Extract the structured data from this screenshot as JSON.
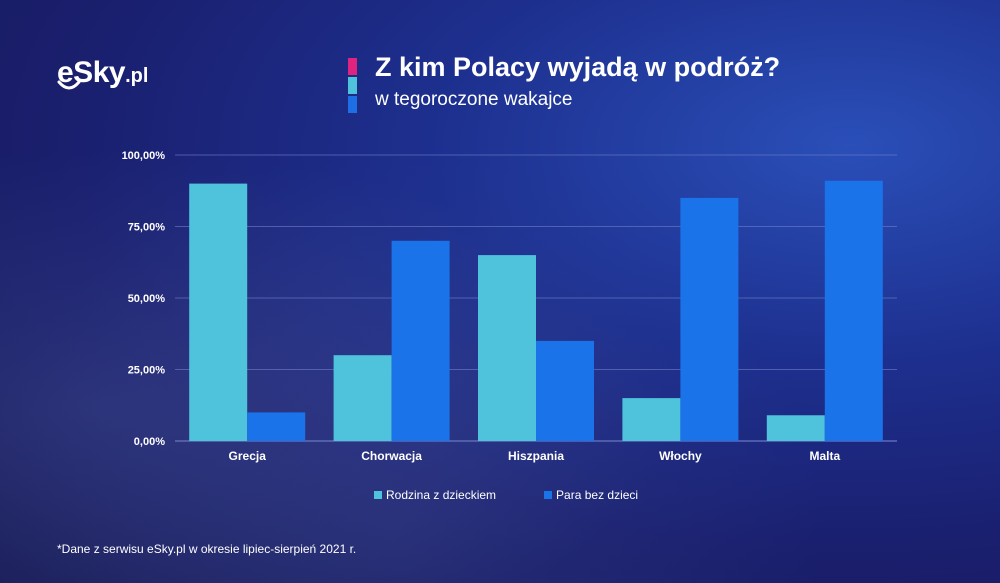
{
  "brand": {
    "logo_main": "eSky",
    "logo_suffix": ".pl"
  },
  "header": {
    "title": "Z kim Polacy wyjadą w podróż?",
    "subtitle": "w tegoroczone wakajce",
    "accent_colors": [
      "#e0237f",
      "#4fc3dc",
      "#1e6fe6"
    ]
  },
  "footnote": "*Dane z serwisu eSky.pl w okresie lipiec-sierpień 2021 r.",
  "colors": {
    "series_1": "#4fc3dc",
    "series_2": "#1a73e8",
    "grid": "#6f7fc9",
    "text": "#ffffff"
  },
  "chart_data": {
    "type": "bar",
    "categories": [
      "Grecja",
      "Chorwacja",
      "Hiszpania",
      "Włochy",
      "Malta"
    ],
    "series": [
      {
        "name": "Rodzina z dzieckiem",
        "values": [
          90,
          30,
          65,
          15,
          9
        ]
      },
      {
        "name": "Para bez dzieci",
        "values": [
          10,
          70,
          35,
          85,
          91
        ]
      }
    ],
    "ylim": [
      0,
      100
    ],
    "yticks": [
      0,
      25,
      50,
      75,
      100
    ],
    "ytick_labels": [
      "0,00%",
      "25,00%",
      "50,00%",
      "75,00%",
      "100,00%"
    ],
    "grid": true,
    "legend_position": "bottom"
  }
}
